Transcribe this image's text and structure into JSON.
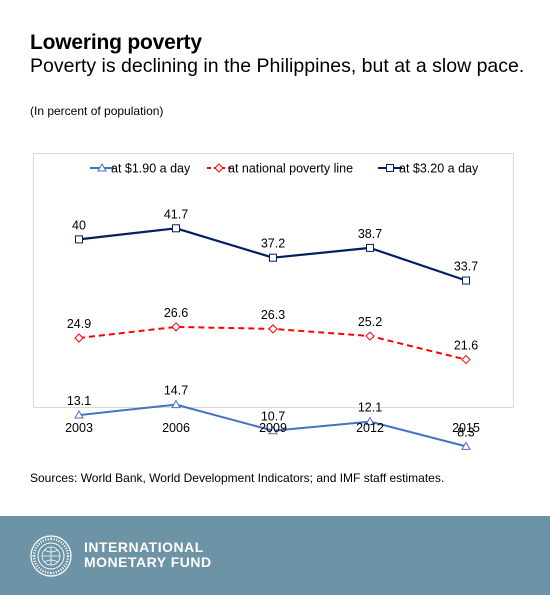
{
  "title": "Lowering poverty",
  "subtitle": "Poverty is declining in the Philippines, but at a slow pace.",
  "unit_note": "(In percent of population)",
  "source": "Sources: World Bank, World Development Indicators; and IMF staff estimates.",
  "footer": {
    "org_line1": "INTERNATIONAL",
    "org_line2": "MONETARY FUND",
    "seal_text": "INTERNATIONAL MONETARY FUND"
  },
  "chart_data": {
    "type": "line",
    "x": [
      "2003",
      "2006",
      "2009",
      "2012",
      "2015"
    ],
    "series": [
      {
        "name": "at $1.90 a day",
        "values": [
          13.1,
          14.7,
          10.7,
          12.1,
          8.3
        ],
        "color": "#4472c4",
        "marker": "triangle",
        "dash": "solid"
      },
      {
        "name": "at national poverty line",
        "values": [
          24.9,
          26.6,
          26.3,
          25.2,
          21.6
        ],
        "color": "#ff0000",
        "marker": "diamond",
        "dash": "dashed"
      },
      {
        "name": "at $3.20 a day",
        "values": [
          40,
          41.7,
          37.2,
          38.7,
          33.7
        ],
        "color": "#002060",
        "marker": "square",
        "dash": "solid"
      }
    ],
    "labels": [
      [
        "13.1",
        "14.7",
        "10.7",
        "12.1",
        "8.3"
      ],
      [
        "24.9",
        "26.6",
        "26.3",
        "25.2",
        "21.6"
      ],
      [
        "40",
        "41.7",
        "37.2",
        "38.7",
        "33.7"
      ]
    ],
    "ylim": [
      0,
      50
    ],
    "legend_position": "top",
    "grid": false
  }
}
